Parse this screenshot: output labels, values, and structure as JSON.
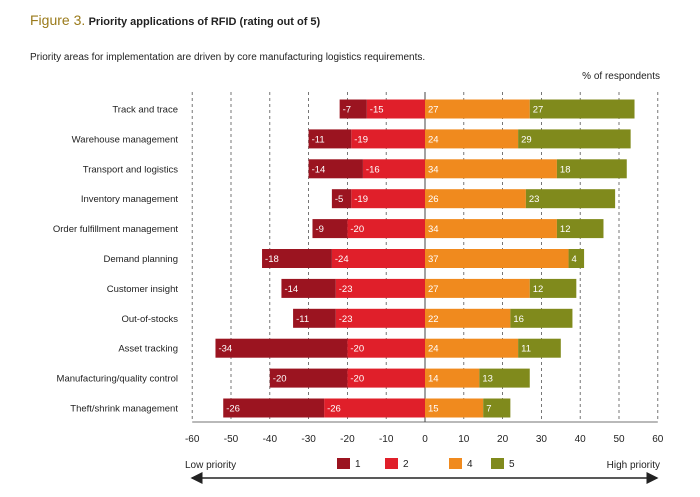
{
  "figure_label": "Figure 3.",
  "title": "Priority applications of RFID (rating out of 5)",
  "subtitle": "Priority areas for implementation are driven by core manufacturing logistics requirements.",
  "unit_label": "% of respondents",
  "low_label": "Low priority",
  "high_label": "High priority",
  "colors": {
    "1": "#9b1420",
    "2": "#e01f2a",
    "4": "#f08a1e",
    "5": "#808a1c"
  },
  "chart_data": {
    "type": "bar",
    "orientation": "horizontal-diverging",
    "categories": [
      "Track and trace",
      "Warehouse management",
      "Transport and logistics",
      "Inventory management",
      "Order fulfillment management",
      "Demand planning",
      "Customer insight",
      "Out-of-stocks",
      "Asset tracking",
      "Manufacturing/quality control",
      "Theft/shrink management"
    ],
    "series": [
      {
        "name": "1",
        "values": [
          -7,
          -11,
          -14,
          -5,
          -9,
          -18,
          -14,
          -11,
          -34,
          -20,
          -26
        ]
      },
      {
        "name": "2",
        "values": [
          -15,
          -19,
          -16,
          -19,
          -20,
          -24,
          -23,
          -23,
          -20,
          -20,
          -26
        ]
      },
      {
        "name": "4",
        "values": [
          27,
          24,
          34,
          26,
          34,
          37,
          27,
          22,
          24,
          14,
          15
        ]
      },
      {
        "name": "5",
        "values": [
          27,
          29,
          18,
          23,
          12,
          4,
          12,
          16,
          11,
          13,
          7
        ]
      }
    ],
    "xlim": [
      -60,
      60
    ],
    "xticks": [
      -60,
      -50,
      -40,
      -30,
      -20,
      -10,
      0,
      10,
      20,
      30,
      40,
      50,
      60
    ],
    "legend_position": "bottom",
    "grid": "vertical-dashed"
  }
}
